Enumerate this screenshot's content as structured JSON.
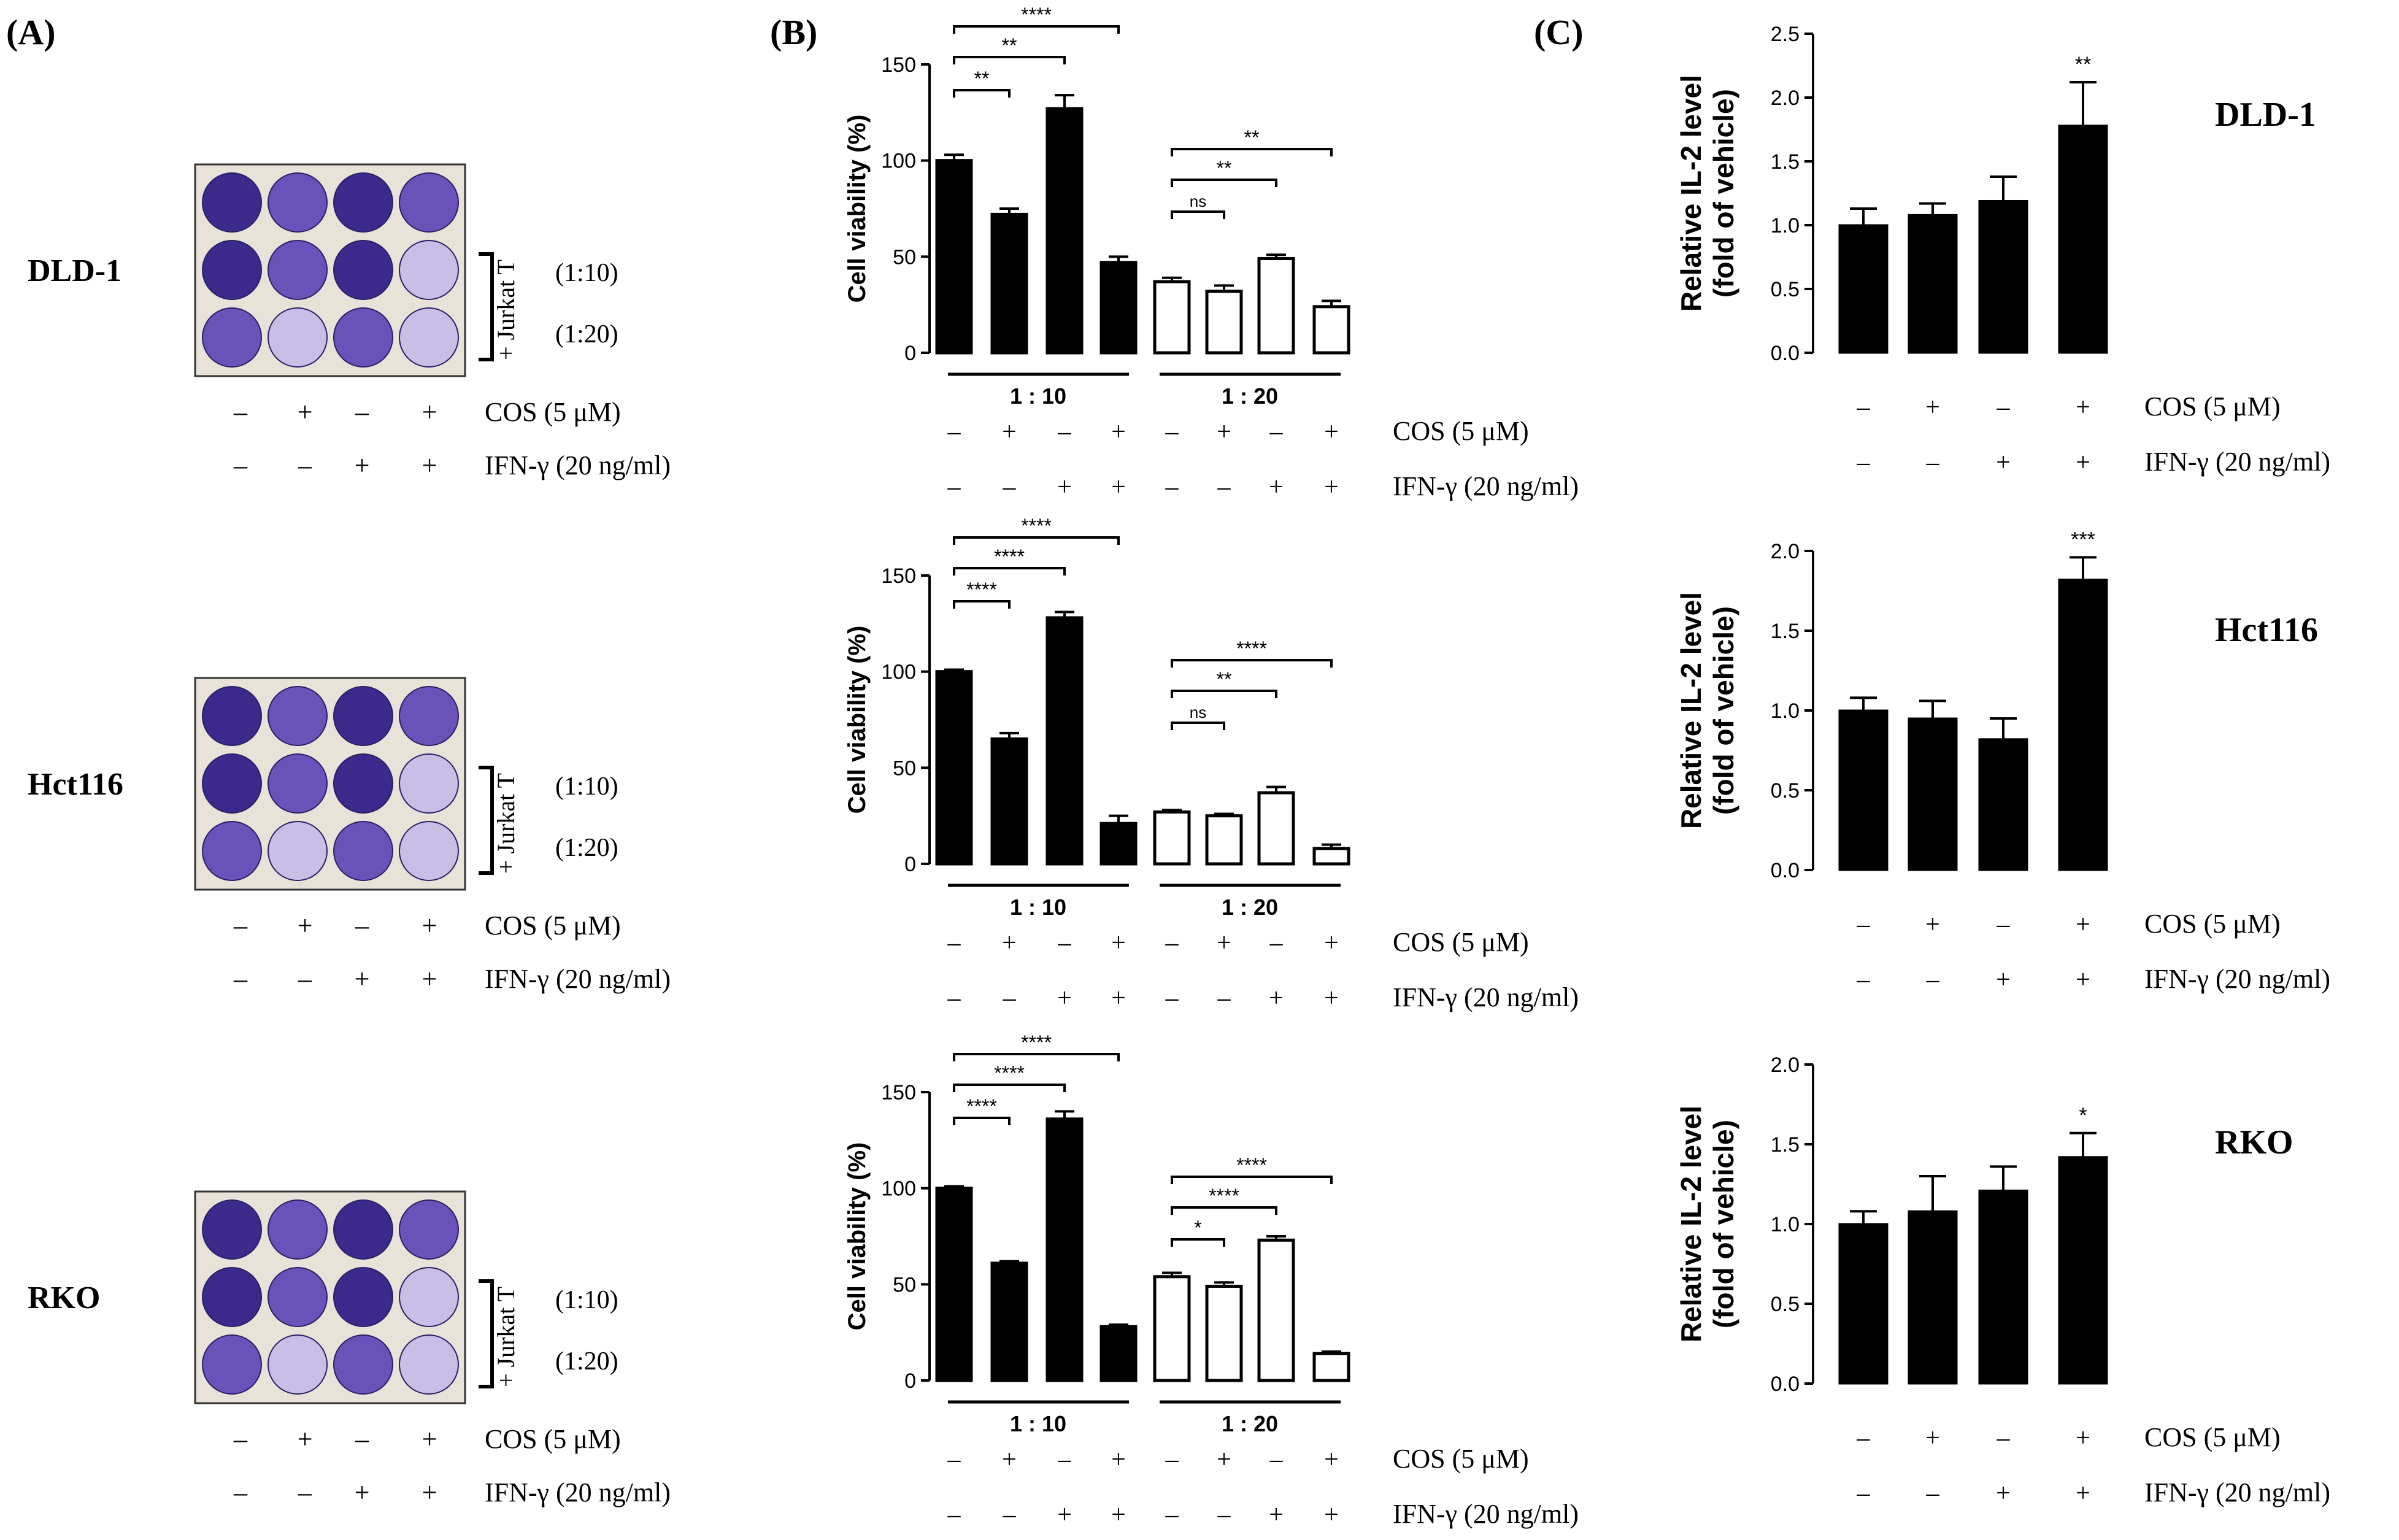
{
  "panel_labels": [
    "(A)",
    "(B)",
    "(C)"
  ],
  "sign_labels": {
    "cos": "COS (5 μM)",
    "ifn": "IFN-γ (20 ng/ml)"
  },
  "cos_signs": [
    "–",
    "+",
    "–",
    "+"
  ],
  "ifn_signs": [
    "–",
    "–",
    "+",
    "+"
  ],
  "panel_a": {
    "cell_lines": [
      "DLD-1",
      "Hct116",
      "RKO"
    ],
    "bracket_label": "+ Jurkat T",
    "ratio_labels": [
      "(1:10)",
      "(1:20)"
    ]
  },
  "panel_b": {
    "ylabel": "Cell viability (%)",
    "group_labels": [
      "1 : 10",
      "1 : 20"
    ]
  },
  "panel_c": {
    "ylabel_line1": "Relative IL-2 level",
    "ylabel_line2": "(fold of vehicle)",
    "cell_labels": [
      "DLD-1",
      "Hct116",
      "RKO"
    ]
  },
  "colors": {
    "bar_filled": "#000000",
    "bar_open": "#ffffff",
    "well_dark": "#3b2a8c",
    "well_mid": "#6b52b8",
    "well_light": "#c8bee6",
    "plate": "#e8e2d8"
  },
  "chart_data": [
    {
      "id": "B1",
      "type": "bar",
      "title": "DLD-1 cell viability",
      "ylabel": "Cell viability (%)",
      "ylim": [
        0,
        150
      ],
      "ticks": [
        0,
        50,
        100,
        150
      ],
      "groups": [
        "1 : 10",
        "1 : 20"
      ],
      "values": [
        100,
        72,
        127,
        47,
        37,
        32,
        49,
        24
      ],
      "errors": [
        3,
        3,
        7,
        3,
        2,
        3,
        2,
        3
      ],
      "filled": [
        true,
        true,
        true,
        true,
        false,
        false,
        false,
        false
      ],
      "comparisons": [
        {
          "from": 0,
          "to": 1,
          "label": "**"
        },
        {
          "from": 0,
          "to": 2,
          "label": "**"
        },
        {
          "from": 0,
          "to": 3,
          "label": "****"
        },
        {
          "from": 4,
          "to": 5,
          "label": "ns"
        },
        {
          "from": 4,
          "to": 6,
          "label": "**"
        },
        {
          "from": 4,
          "to": 7,
          "label": "**"
        }
      ]
    },
    {
      "id": "B2",
      "type": "bar",
      "title": "Hct116 cell viability",
      "ylabel": "Cell viability (%)",
      "ylim": [
        0,
        150
      ],
      "ticks": [
        0,
        50,
        100,
        150
      ],
      "groups": [
        "1 : 10",
        "1 : 20"
      ],
      "values": [
        100,
        65,
        128,
        21,
        27,
        25,
        37,
        8
      ],
      "errors": [
        1,
        3,
        3,
        4,
        1,
        1,
        3,
        2
      ],
      "filled": [
        true,
        true,
        true,
        true,
        false,
        false,
        false,
        false
      ],
      "comparisons": [
        {
          "from": 0,
          "to": 1,
          "label": "****"
        },
        {
          "from": 0,
          "to": 2,
          "label": "****"
        },
        {
          "from": 0,
          "to": 3,
          "label": "****"
        },
        {
          "from": 4,
          "to": 5,
          "label": "ns"
        },
        {
          "from": 4,
          "to": 6,
          "label": "**"
        },
        {
          "from": 4,
          "to": 7,
          "label": "****"
        }
      ]
    },
    {
      "id": "B3",
      "type": "bar",
      "title": "RKO cell viability",
      "ylabel": "Cell viability (%)",
      "ylim": [
        0,
        150
      ],
      "ticks": [
        0,
        50,
        100,
        150
      ],
      "groups": [
        "1 : 10",
        "1 : 20"
      ],
      "values": [
        100,
        61,
        136,
        28,
        54,
        49,
        73,
        14
      ],
      "errors": [
        1,
        1,
        4,
        1,
        2,
        2,
        2,
        1
      ],
      "filled": [
        true,
        true,
        true,
        true,
        false,
        false,
        false,
        false
      ],
      "comparisons": [
        {
          "from": 0,
          "to": 1,
          "label": "****"
        },
        {
          "from": 0,
          "to": 2,
          "label": "****"
        },
        {
          "from": 0,
          "to": 3,
          "label": "****"
        },
        {
          "from": 4,
          "to": 5,
          "label": "*"
        },
        {
          "from": 4,
          "to": 6,
          "label": "****"
        },
        {
          "from": 4,
          "to": 7,
          "label": "****"
        }
      ]
    },
    {
      "id": "C1",
      "type": "bar",
      "title": "DLD-1 IL-2",
      "ylabel": "Relative IL-2 level (fold of vehicle)",
      "ylim": [
        0,
        2.5
      ],
      "ticks": [
        0.0,
        0.5,
        1.0,
        1.5,
        2.0,
        2.5
      ],
      "values": [
        1.0,
        1.08,
        1.19,
        1.78
      ],
      "errors": [
        0.13,
        0.09,
        0.19,
        0.34
      ],
      "sig": [
        null,
        null,
        null,
        "**"
      ]
    },
    {
      "id": "C2",
      "type": "bar",
      "title": "Hct116 IL-2",
      "ylabel": "Relative IL-2 level (fold of vehicle)",
      "ylim": [
        0,
        2.0
      ],
      "ticks": [
        0.0,
        0.5,
        1.0,
        1.5,
        2.0
      ],
      "values": [
        1.0,
        0.95,
        0.82,
        1.82
      ],
      "errors": [
        0.08,
        0.11,
        0.13,
        0.14
      ],
      "sig": [
        null,
        null,
        null,
        "***"
      ]
    },
    {
      "id": "C3",
      "type": "bar",
      "title": "RKO IL-2",
      "ylabel": "Relative IL-2 level (fold of vehicle)",
      "ylim": [
        0,
        2.0
      ],
      "ticks": [
        0.0,
        0.5,
        1.0,
        1.5,
        2.0
      ],
      "values": [
        1.0,
        1.08,
        1.21,
        1.42
      ],
      "errors": [
        0.08,
        0.22,
        0.15,
        0.15
      ],
      "sig": [
        null,
        null,
        null,
        "*"
      ]
    }
  ]
}
